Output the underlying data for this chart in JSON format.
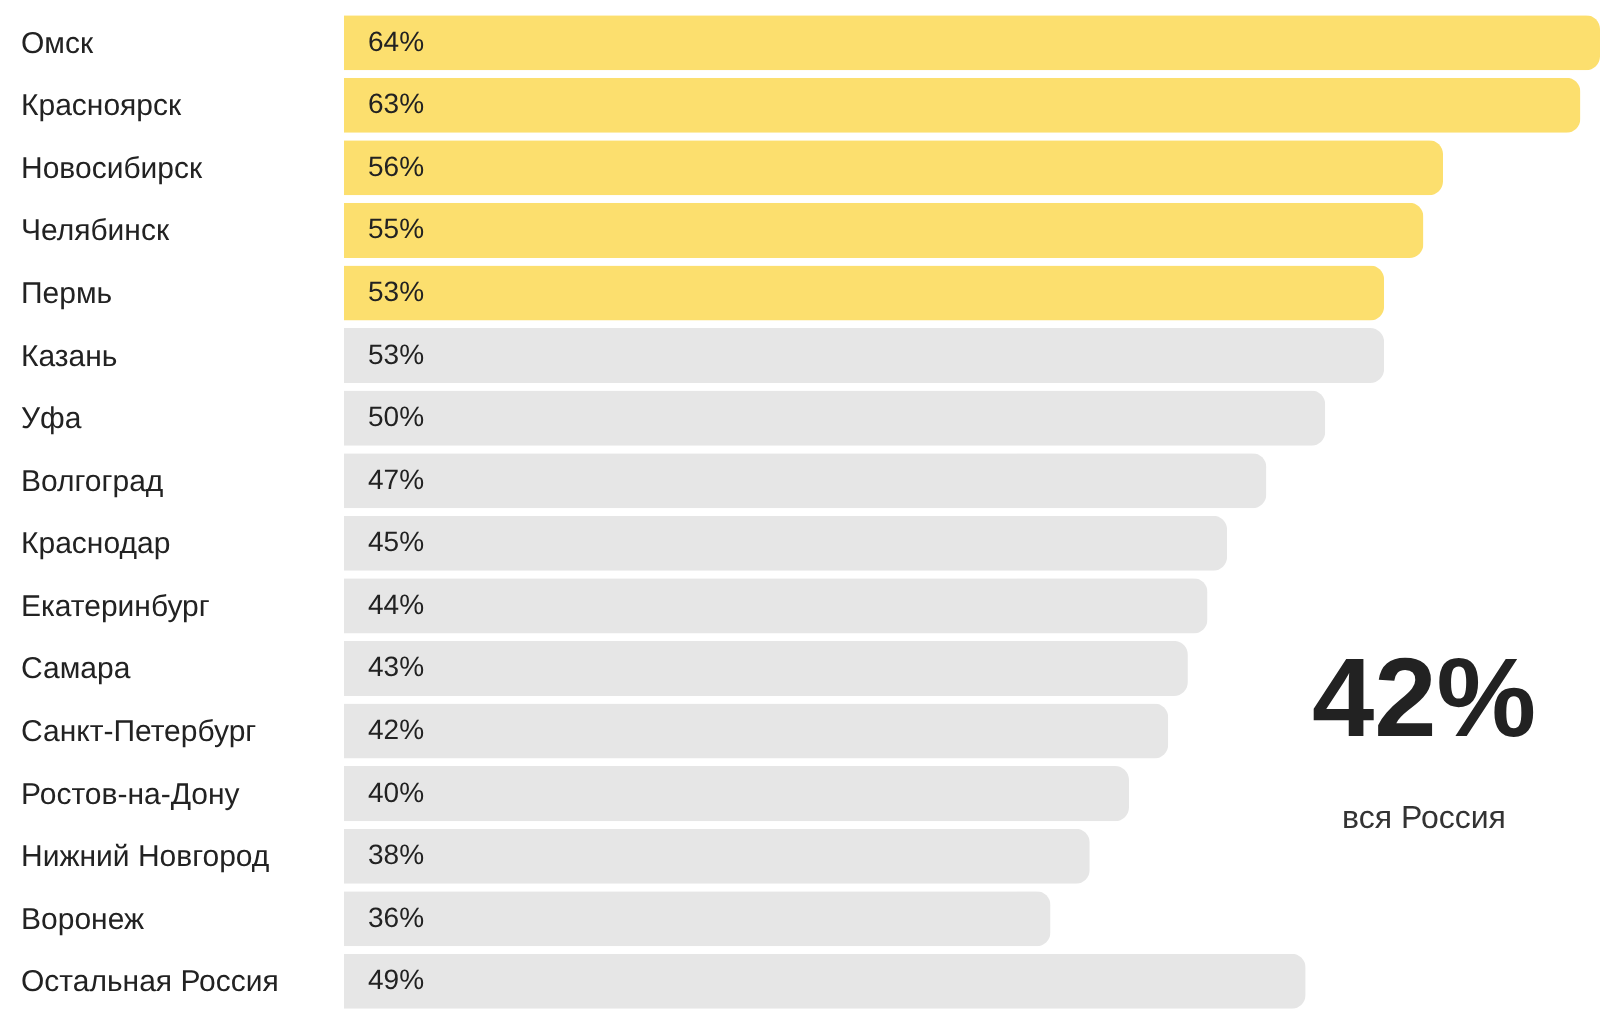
{
  "chart_data": {
    "type": "bar",
    "orientation": "horizontal",
    "categories": [
      "Омск",
      "Красноярск",
      "Новосибирск",
      "Челябинск",
      "Пермь",
      "Казань",
      "Уфа",
      "Волгоград",
      "Краснодар",
      "Екатеринбург",
      "Самара",
      "Санкт-Петербург",
      "Ростов-на-Дону",
      "Нижний Новгород",
      "Воронеж",
      "Остальная Россия"
    ],
    "values": [
      64,
      63,
      56,
      55,
      53,
      53,
      50,
      47,
      45,
      44,
      43,
      42,
      40,
      38,
      36,
      49
    ],
    "value_labels": [
      "64%",
      "63%",
      "56%",
      "55%",
      "53%",
      "53%",
      "50%",
      "47%",
      "45%",
      "44%",
      "43%",
      "42%",
      "40%",
      "38%",
      "36%",
      "49%"
    ],
    "colors": [
      "#fcdf6e",
      "#fcdf6e",
      "#fcdf6e",
      "#fcdf6e",
      "#fcdf6e",
      "#e6e6e6",
      "#e6e6e6",
      "#e6e6e6",
      "#e6e6e6",
      "#e6e6e6",
      "#e6e6e6",
      "#e6e6e6",
      "#e6e6e6",
      "#e6e6e6",
      "#e6e6e6",
      "#e6e6e6"
    ],
    "xlim": [
      0,
      64
    ],
    "tick_labels": "y",
    "grid": false,
    "annotations": [
      "42%",
      "вся Россия"
    ]
  }
}
